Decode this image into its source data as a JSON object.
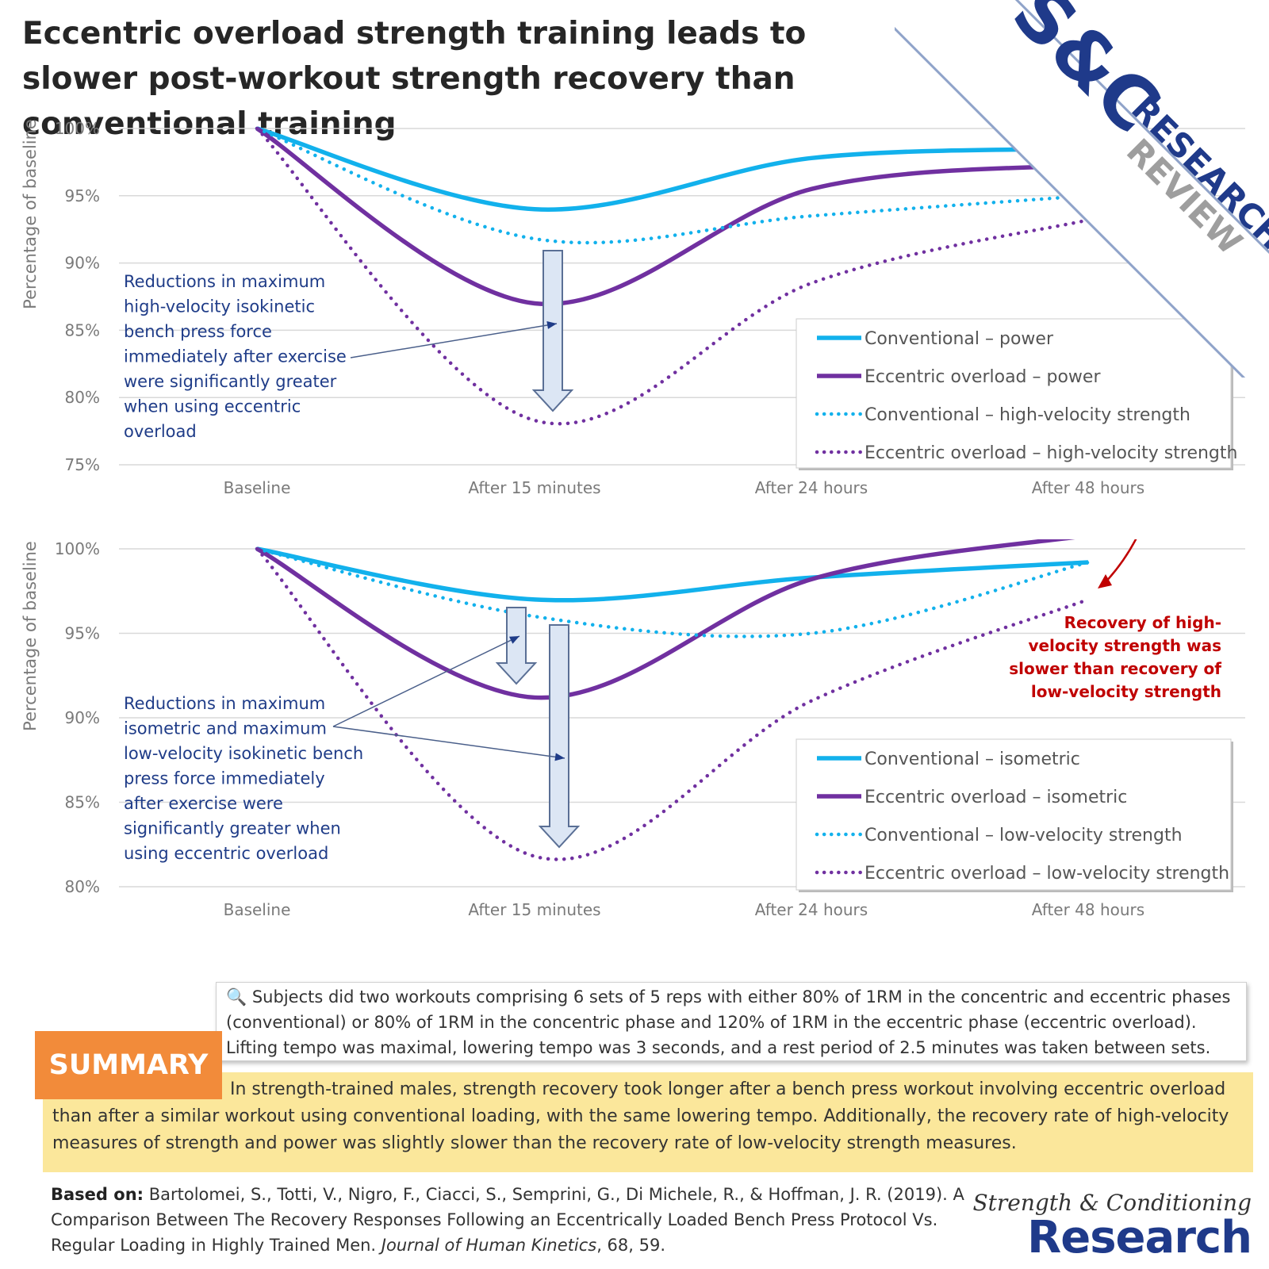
{
  "title": "Eccentric overload strength training leads to slower post-workout strength recovery than conventional training",
  "banner": {
    "line1": "S&C",
    "line2": "RESEARCH",
    "line3": "REVIEW"
  },
  "colors": {
    "conventional": "#12b1ec",
    "eccentric": "#7030a0",
    "annotation": "#1f3c88",
    "red": "#c00000",
    "summary_bg": "#fbe79b",
    "summary_tag": "#f28b3a"
  },
  "chart_data": [
    {
      "type": "line",
      "categories": [
        "Baseline",
        "After 15 minutes",
        "After 24 hours",
        "After 48 hours"
      ],
      "ylabel": "Percentage of baseline",
      "yticks": [
        "100%",
        "95%",
        "90%",
        "85%",
        "80%",
        "75%"
      ],
      "ylim": [
        75,
        100
      ],
      "series": [
        {
          "name": "Conventional – power",
          "values": [
            100,
            94,
            97.8,
            98.5
          ],
          "color": "#12b1ec",
          "style": "solid"
        },
        {
          "name": "Eccentric overload – power",
          "values": [
            100,
            87,
            95.5,
            97.3
          ],
          "color": "#7030a0",
          "style": "solid"
        },
        {
          "name": "Conventional – high-velocity strength",
          "values": [
            100,
            91.8,
            93.5,
            95
          ],
          "color": "#12b1ec",
          "style": "dotted"
        },
        {
          "name": "Eccentric overload – high-velocity strength",
          "values": [
            100,
            78.3,
            88.5,
            93.2
          ],
          "color": "#7030a0",
          "style": "dotted"
        }
      ],
      "annotation": [
        "Reductions in maximum",
        "high-velocity isokinetic",
        "bench press force",
        "immediately after exercise",
        "were significantly greater",
        "when using eccentric",
        "overload"
      ]
    },
    {
      "type": "line",
      "categories": [
        "Baseline",
        "After 15 minutes",
        "After 24 hours",
        "After 48 hours"
      ],
      "ylabel": "Percentage of baseline",
      "yticks": [
        "100%",
        "95%",
        "90%",
        "85%",
        "80%"
      ],
      "ylim": [
        80,
        100
      ],
      "series": [
        {
          "name": "Conventional – isometric",
          "values": [
            100,
            97,
            98.3,
            99.2
          ],
          "color": "#12b1ec",
          "style": "solid"
        },
        {
          "name": "Eccentric overload – isometric",
          "values": [
            100,
            91.2,
            98.2,
            100.8
          ],
          "color": "#7030a0",
          "style": "solid"
        },
        {
          "name": "Conventional – low-velocity strength",
          "values": [
            100,
            96,
            95,
            99.2
          ],
          "color": "#12b1ec",
          "style": "dotted"
        },
        {
          "name": "Eccentric overload – low-velocity strength",
          "values": [
            100,
            81.8,
            91,
            97
          ],
          "color": "#7030a0",
          "style": "dotted"
        }
      ],
      "annotation": [
        "Reductions in maximum",
        "isometric and maximum",
        "low-velocity isokinetic bench",
        "press force immediately",
        "after exercise were",
        "significantly greater when",
        "using eccentric overload"
      ],
      "red_note": [
        "Recovery of high-",
        "velocity strength was",
        "slower than recovery of",
        "low-velocity strength"
      ]
    }
  ],
  "note": "Subjects did two workouts comprising 6 sets of 5 reps with either 80% of 1RM in the concentric and eccentric phases (conventional) or 80% of 1RM in the concentric phase and 120% of 1RM in the eccentric phase (eccentric overload). Lifting tempo was maximal, lowering tempo was 3 seconds, and a rest period of 2.5 minutes was taken between sets.",
  "note_icon": "magnifier-icon",
  "summary": {
    "label": "SUMMARY",
    "text": "In strength-trained males, strength recovery took longer after a bench press workout involving eccentric overload than after a similar workout using conventional loading, with the same lowering tempo. Additionally, the recovery rate of high-velocity measures of strength and power was slightly slower than the recovery rate of low-velocity strength measures."
  },
  "citation": {
    "label": "Based on:",
    "text1": "Bartolomei, S., Totti, V., Nigro, F., Ciacci, S., Semprini, G., Di Michele, R., & Hoffman, J. R. (2019). A Comparison Between The Recovery Responses Following an Eccentrically Loaded Bench Press Protocol Vs. Regular Loading in Highly Trained Men.",
    "journal": "Journal of Human Kinetics",
    "text2": ", 68, 59."
  },
  "logo": {
    "script": "Strength & Conditioning",
    "word": "Research"
  }
}
